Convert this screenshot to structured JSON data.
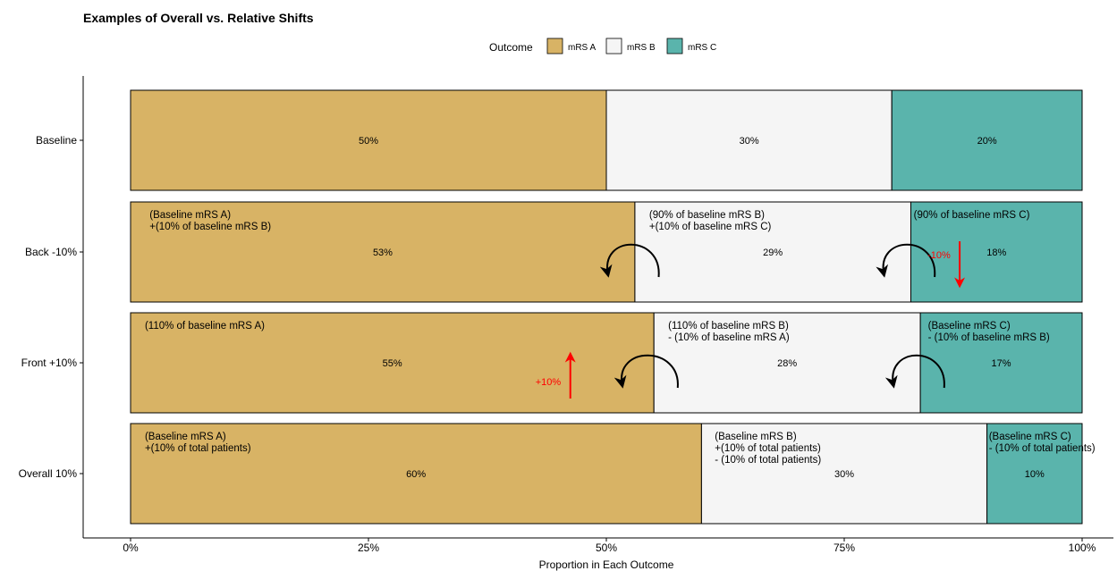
{
  "title": "Examples of Overall vs. Relative Shifts",
  "legend": {
    "title": "Outcome",
    "items": [
      {
        "label": "mRS A",
        "color": "#D8B365"
      },
      {
        "label": "mRS B",
        "color": "#F5F5F5"
      },
      {
        "label": "mRS C",
        "color": "#5AB4AC"
      }
    ]
  },
  "chart_data": {
    "type": "bar",
    "orientation": "horizontal",
    "stacked": true,
    "title": "Examples of Overall vs. Relative Shifts",
    "xlabel": "Proportion in Each Outcome",
    "ylabel": "",
    "xlim": [
      0,
      1
    ],
    "x_ticks": [
      "0%",
      "25%",
      "50%",
      "75%",
      "100%"
    ],
    "categories": [
      "Baseline",
      "Back -10%",
      "Front +10%",
      "Overall 10%"
    ],
    "series": [
      {
        "name": "mRS A",
        "color": "#D8B365",
        "values": [
          0.5,
          0.53,
          0.55,
          0.6
        ],
        "labels": [
          "50%",
          "53%",
          "55%",
          "60%"
        ]
      },
      {
        "name": "mRS B",
        "color": "#F5F5F5",
        "values": [
          0.3,
          0.29,
          0.28,
          0.3
        ],
        "labels": [
          "30%",
          "29%",
          "28%",
          "30%"
        ]
      },
      {
        "name": "mRS C",
        "color": "#5AB4AC",
        "values": [
          0.2,
          0.18,
          0.17,
          0.1
        ],
        "labels": [
          "20%",
          "18%",
          "17%",
          "10%"
        ]
      }
    ],
    "legend_position": "top",
    "grid": false,
    "annotations": [
      {
        "row": 1,
        "at": 0.02,
        "lines": [
          "(Baseline mRS A)",
          "+(10% of baseline mRS B)"
        ]
      },
      {
        "row": 1,
        "at": 0.545,
        "lines": [
          "(90% of baseline mRS B)",
          "+(10% of baseline mRS C)"
        ]
      },
      {
        "row": 1,
        "at": 0.823,
        "lines": [
          "(90% of baseline mRS C)"
        ]
      },
      {
        "row": 2,
        "at": 0.015,
        "lines": [
          "(110% of baseline mRS A)"
        ]
      },
      {
        "row": 2,
        "at": 0.565,
        "lines": [
          "(110% of baseline mRS B)",
          "- (10% of baseline mRS A)"
        ]
      },
      {
        "row": 2,
        "at": 0.838,
        "lines": [
          "(Baseline mRS C)",
          "- (10% of baseline mRS B)"
        ]
      },
      {
        "row": 3,
        "at": 0.015,
        "lines": [
          "(Baseline mRS A)",
          "+(10% of total patients)"
        ]
      },
      {
        "row": 3,
        "at": 0.614,
        "lines": [
          "(Baseline mRS B)",
          "+(10% of total patients)",
          "- (10% of total patients)"
        ]
      },
      {
        "row": 3,
        "at": 0.902,
        "lines": [
          "(Baseline mRS C)",
          "- (10% of total patients)"
        ]
      }
    ],
    "shift_labels": [
      {
        "row": 1,
        "at": 0.845,
        "text": "-10%",
        "direction": "down"
      },
      {
        "row": 2,
        "at": 0.449,
        "text": "+10%",
        "direction": "up"
      }
    ],
    "curved_arrows": [
      {
        "row": 1,
        "from": 0.555,
        "to": 0.5
      },
      {
        "row": 1,
        "from": 0.845,
        "to": 0.79
      },
      {
        "row": 2,
        "from": 0.575,
        "to": 0.515
      },
      {
        "row": 2,
        "from": 0.855,
        "to": 0.8
      }
    ]
  }
}
